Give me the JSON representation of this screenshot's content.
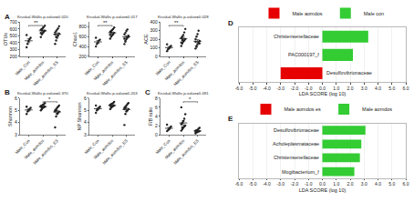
{
  "chart_data": [
    {
      "type": "dot",
      "panel": "A",
      "title": "Kruskal-Wallis p-value=0.020",
      "y_label": "OTUs",
      "categories": [
        "Male_Con",
        "Male_aomdos",
        "Male_aomdos_ES"
      ],
      "points": [
        [
          330,
          380,
          420,
          450,
          470,
          510
        ],
        [
          480,
          520,
          540,
          560,
          575,
          590,
          600,
          615,
          630,
          650,
          540,
          580
        ],
        [
          380,
          430,
          470,
          500,
          530,
          550,
          570,
          590,
          610,
          640,
          520,
          480
        ]
      ],
      "means": [
        427,
        573,
        522
      ],
      "errors": [
        27,
        14,
        22
      ],
      "color": "#222222",
      "ylim": [
        200,
        700
      ],
      "yticks": [
        200,
        300,
        400,
        500,
        600,
        700
      ],
      "annotations": [
        {
          "text": "**",
          "from": 0,
          "to": 1
        }
      ]
    },
    {
      "type": "dot",
      "title": "Kruskal-Wallis p-value=0.017",
      "y_label": "Chao1",
      "categories": [
        "Male_Con",
        "Male_aomdos",
        "Male_aomdos_ES"
      ],
      "points": [
        [
          400,
          450,
          480,
          520,
          540,
          580
        ],
        [
          560,
          600,
          630,
          650,
          680,
          700,
          720,
          740,
          760,
          790,
          640,
          690
        ],
        [
          450,
          500,
          550,
          580,
          620,
          650,
          680,
          720,
          750,
          600,
          560,
          520
        ]
      ],
      "means": [
        495,
        680,
        598
      ],
      "errors": [
        27,
        19,
        25
      ],
      "color": "#222222",
      "ylim": [
        200,
        900
      ],
      "yticks": [
        200,
        400,
        600,
        800
      ],
      "annotations": [
        {
          "text": "**",
          "from": 0,
          "to": 1
        }
      ]
    },
    {
      "type": "dot",
      "title": "Kruskal-Wallis p-value=0.028",
      "y_label": "ACE",
      "categories": [
        "Male_Con",
        "Male_aomdos",
        "Male_aomdos_ES"
      ],
      "points": [
        [
          60,
          80,
          95,
          110,
          120,
          140
        ],
        [
          120,
          150,
          170,
          185,
          200,
          215,
          230,
          250,
          280,
          320,
          160,
          190
        ],
        [
          90,
          120,
          140,
          160,
          180,
          200,
          230,
          260,
          300,
          150,
          170,
          110
        ]
      ],
      "means": [
        101,
        206,
        176
      ],
      "errors": [
        12,
        16,
        18
      ],
      "color": "#222222",
      "ylim": [
        0,
        400
      ],
      "yticks": [
        0,
        100,
        200,
        300,
        400
      ],
      "annotations": [
        {
          "text": "**",
          "from": 0,
          "to": 1
        }
      ]
    },
    {
      "type": "dot",
      "panel": "B",
      "title": "Kruskal-Wallis p-value=0.370",
      "y_label": "Shannon",
      "categories": [
        "Male_Con",
        "Male_aomdos",
        "Male_aomdos_ES"
      ],
      "points": [
        [
          4.7,
          4.9,
          5.0,
          5.1,
          5.2,
          5.3
        ],
        [
          5.0,
          5.1,
          5.2,
          5.25,
          5.3,
          5.35,
          5.4,
          5.45,
          5.5,
          5.6,
          5.3,
          5.2
        ],
        [
          3.6,
          4.5,
          4.7,
          4.8,
          4.9,
          5.0,
          5.1,
          5.2,
          5.3,
          5.4,
          4.9,
          5.0
        ]
      ],
      "means": [
        5.03,
        5.3,
        4.87
      ],
      "errors": [
        0.09,
        0.05,
        0.13
      ],
      "color": "#222222",
      "ylim": [
        3,
        6
      ],
      "yticks": [
        3,
        4,
        5,
        6
      ],
      "annotations": [
        {
          "text": "*",
          "from": 1,
          "to": 2
        }
      ]
    },
    {
      "type": "dot",
      "title": "Kruskal-Wallis p-value=0.203",
      "y_label": "NP Shannon",
      "categories": [
        "Male_Con",
        "Male_aomdos",
        "Male_aomdos_ES"
      ],
      "points": [
        [
          4.8,
          5.0,
          5.1,
          5.2,
          5.3,
          5.4
        ],
        [
          5.1,
          5.2,
          5.3,
          5.35,
          5.4,
          5.45,
          5.5,
          5.55,
          5.6,
          5.7,
          5.4,
          5.3
        ],
        [
          3.8,
          4.7,
          4.9,
          5.0,
          5.1,
          5.2,
          5.3,
          5.4,
          5.5,
          5.6,
          5.1,
          5.2
        ]
      ],
      "means": [
        5.13,
        5.4,
        5.07
      ],
      "errors": [
        0.09,
        0.05,
        0.13
      ],
      "color": "#222222",
      "ylim": [
        3,
        6
      ],
      "yticks": [
        3,
        4,
        5,
        6
      ],
      "annotations": []
    },
    {
      "type": "dot",
      "panel": "C",
      "title": "Kruskal-Wallis p-value=0.091",
      "y_label": "F/B ratio",
      "categories": [
        "Male_Con",
        "Male_aomdos",
        "Male_aomdos_ES"
      ],
      "points": [
        [
          0.8,
          1.0,
          1.2,
          1.5,
          1.8,
          2.2
        ],
        [
          0.9,
          1.2,
          1.5,
          1.8,
          2.0,
          2.3,
          2.6,
          3.0,
          3.5,
          4.5,
          6.0,
          1.6
        ],
        [
          0.3,
          0.5,
          0.6,
          0.7,
          0.8,
          0.9,
          1.0,
          1.1,
          1.3,
          1.5,
          0.6,
          0.8
        ]
      ],
      "means": [
        1.42,
        2.58,
        0.84
      ],
      "errors": [
        0.21,
        0.44,
        0.1
      ],
      "color": "#222222",
      "ylim": [
        0,
        8
      ],
      "yticks": [
        0,
        2,
        4,
        6,
        8
      ],
      "annotations": [
        {
          "text": "*",
          "from": 1,
          "to": 2
        }
      ]
    },
    {
      "type": "bar",
      "panel": "D",
      "orientation": "horizontal",
      "categories": [
        "Christensenellaceae",
        "PAC000197_f",
        "Desulfovibrionaceae"
      ],
      "series": [
        {
          "name": "Male aomdos",
          "color": "#e60000",
          "values": [
            null,
            null,
            -3.0
          ]
        },
        {
          "name": "Male con",
          "color": "#33cc33",
          "values": [
            3.3,
            2.2,
            null
          ]
        }
      ],
      "x_label": "LDA SCORE (log 10)",
      "xlim": [
        -6,
        6
      ],
      "xticks": [
        {
          "value": -6,
          "label": "-6.0"
        },
        {
          "value": -5,
          "label": "-5.0"
        },
        {
          "value": -4,
          "label": "-4.0"
        },
        {
          "value": -3,
          "label": "-3.0"
        },
        {
          "value": -2,
          "label": "-2.0"
        },
        {
          "value": -1,
          "label": "-1.0"
        },
        {
          "value": 0,
          "label": "0.0"
        },
        {
          "value": 1,
          "label": "1.0"
        },
        {
          "value": 2,
          "label": "2.0"
        },
        {
          "value": 3,
          "label": "3.0"
        },
        {
          "value": 4,
          "label": "4.0"
        },
        {
          "value": 5,
          "label": "5.0"
        },
        {
          "value": 6,
          "label": "6.0"
        }
      ],
      "legend": "top",
      "grid": true,
      "tick_labels": "x"
    },
    {
      "type": "bar",
      "panel": "E",
      "orientation": "horizontal",
      "categories": [
        "Desulfovibrionaceae",
        "Acholeplasmataceae",
        "Christensenellaceae",
        "Mogibacterium_f"
      ],
      "series": [
        {
          "name": "Male aomdos es",
          "color": "#e60000",
          "values": [
            null,
            null,
            null,
            null
          ]
        },
        {
          "name": "Male aomdos",
          "color": "#33cc33",
          "values": [
            3.1,
            2.8,
            2.7,
            2.3
          ]
        }
      ],
      "x_label": "LDA SCORE (log 10)",
      "xlim": [
        -6,
        6
      ],
      "xticks": [
        {
          "value": -6,
          "label": "-6.0"
        },
        {
          "value": -5,
          "label": "-5.0"
        },
        {
          "value": -4,
          "label": "-4.0"
        },
        {
          "value": -3,
          "label": "-3.0"
        },
        {
          "value": -2,
          "label": "-2.0"
        },
        {
          "value": -1,
          "label": "-1.0"
        },
        {
          "value": 0,
          "label": "0.0"
        },
        {
          "value": 1,
          "label": "1.0"
        },
        {
          "value": 2,
          "label": "2.0"
        },
        {
          "value": 3,
          "label": "3.0"
        },
        {
          "value": 4,
          "label": "4.0"
        },
        {
          "value": 5,
          "label": "5.0"
        },
        {
          "value": 6,
          "label": "6.0"
        }
      ],
      "legend": "top",
      "grid": true,
      "tick_labels": "x"
    }
  ]
}
